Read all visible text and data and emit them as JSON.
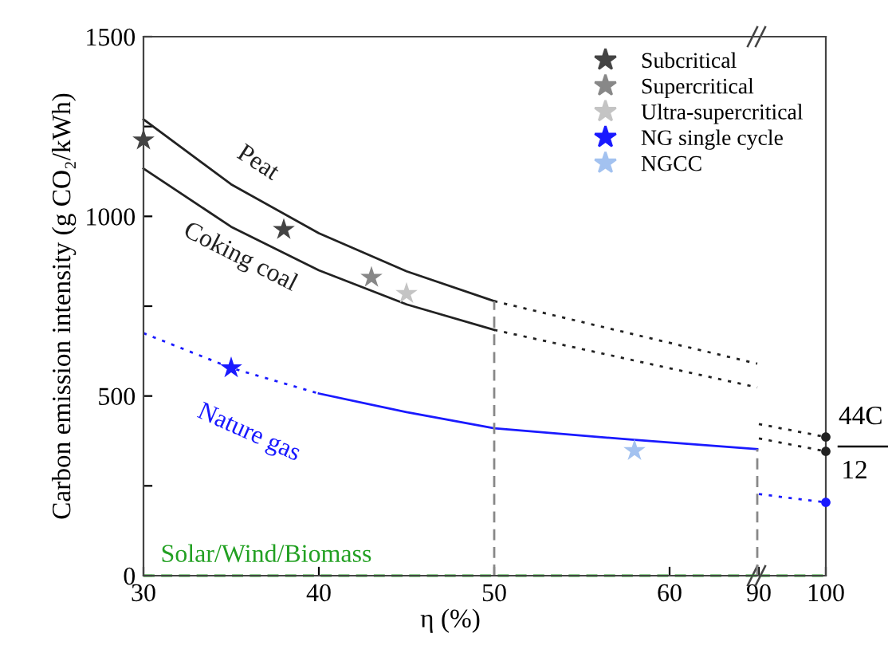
{
  "chart_data": [
    {
      "type": "line",
      "xlabel": "η (%)",
      "ylabel": "Carbon emission intensity (g CO₂/kWh)",
      "xlim": [
        30,
        65
      ],
      "xticks": [
        30,
        40,
        50,
        60
      ],
      "ylim": [
        0,
        1500
      ],
      "yticks": [
        0,
        {
          "value": 250,
          "label": null
        },
        500,
        {
          "value": 750,
          "label": null
        },
        1000,
        {
          "value": 1250,
          "label": null
        },
        1500
      ],
      "grid": false,
      "legend": "top right",
      "series": [
        {
          "name": "Peat",
          "color": "#222222",
          "line_style": "solid",
          "x": [
            30,
            35,
            40,
            45,
            50
          ],
          "values": [
            1270,
            1089,
            953,
            847,
            764
          ]
        },
        {
          "color": "#222222",
          "line_style": "dotted",
          "x": [
            50,
            65
          ],
          "values": [
            764,
            590
          ]
        },
        {
          "name": "Coking coal",
          "color": "#222222",
          "line_style": "solid",
          "x": [
            30,
            35,
            40,
            45,
            50
          ],
          "values": [
            1133,
            971,
            850,
            755,
            684
          ]
        },
        {
          "color": "#222222",
          "line_style": "dotted",
          "x": [
            50,
            65
          ],
          "values": [
            684,
            524
          ]
        },
        {
          "color": "#1a1aff",
          "line_style": "dotted",
          "x": [
            30,
            35,
            40
          ],
          "values": [
            675,
            578,
            507
          ]
        },
        {
          "name": "Nature gas",
          "color": "#1a1aff",
          "line_style": "solid",
          "x": [
            40,
            45,
            50,
            58,
            65
          ],
          "values": [
            507,
            455,
            410,
            378,
            352
          ]
        },
        {
          "name": "Solar/Wind/Biomass",
          "color": "#22a022",
          "line_style": "dashed",
          "x": [
            30,
            65
          ],
          "values": [
            0,
            0
          ]
        },
        {
          "color": "#888888",
          "line_style": "dashed",
          "x": [
            50,
            50
          ],
          "values": [
            0,
            764
          ]
        },
        {
          "color": "#888888",
          "line_style": "dashed",
          "x": [
            65,
            65
          ],
          "values": [
            0,
            352
          ]
        },
        {
          "name": "Subcritical",
          "type": "scatter",
          "marker": "star",
          "color": "#444444",
          "x": [
            30,
            38
          ],
          "values": [
            1212,
            963
          ]
        },
        {
          "name": "Supercritical",
          "type": "scatter",
          "marker": "star",
          "color": "#888888",
          "x": [
            43
          ],
          "values": [
            830
          ]
        },
        {
          "name": "Ultra-supercritical",
          "type": "scatter",
          "marker": "star",
          "color": "#c4c4c4",
          "x": [
            45
          ],
          "values": [
            785
          ]
        },
        {
          "name": "NG single cycle",
          "type": "scatter",
          "marker": "star",
          "color": "#1a1aff",
          "x": [
            35
          ],
          "values": [
            578
          ]
        },
        {
          "name": "NGCC",
          "type": "scatter",
          "marker": "star",
          "color": "#a3c2f0",
          "x": [
            58
          ],
          "values": [
            348
          ]
        }
      ]
    },
    {
      "type": "line",
      "xlim": [
        90,
        100
      ],
      "xticks": [
        90,
        100
      ],
      "ylim": [
        0,
        1500
      ],
      "tick_labels": "x",
      "grid": false,
      "annotations": [
        "44C",
        "12"
      ],
      "series": [
        {
          "color": "#222222",
          "line_style": "dotted",
          "x": [
            90,
            100
          ],
          "values": [
            422,
            386
          ]
        },
        {
          "color": "#222222",
          "line_style": "dotted",
          "x": [
            90,
            100
          ],
          "values": [
            382,
            346
          ]
        },
        {
          "color": "#1a1aff",
          "line_style": "dotted",
          "x": [
            90,
            100
          ],
          "values": [
            227,
            204
          ]
        },
        {
          "color": "#22a022",
          "line_style": "dashed",
          "x": [
            90,
            100
          ],
          "values": [
            0,
            0
          ]
        },
        {
          "type": "scatter",
          "marker": "circle",
          "color": "#222222",
          "x": [
            100,
            100
          ],
          "values": [
            386,
            346
          ]
        },
        {
          "type": "scatter",
          "marker": "circle",
          "color": "#1a1aff",
          "x": [
            100
          ],
          "values": [
            204
          ]
        }
      ]
    }
  ]
}
